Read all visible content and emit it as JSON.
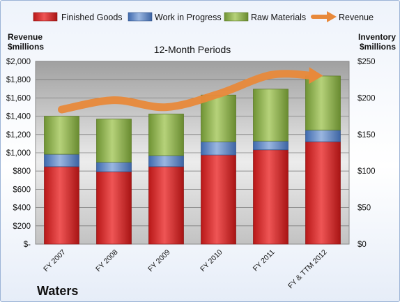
{
  "chart_data": {
    "type": "bar",
    "title": "12-Month Periods",
    "company": "Waters",
    "left_axis": {
      "label_line1": "Revenue",
      "label_line2": "$millions",
      "range": [
        0,
        2000
      ],
      "step": 200,
      "ticks": [
        "$-",
        "$200",
        "$400",
        "$600",
        "$800",
        "$1,000",
        "$1,200",
        "$1,400",
        "$1,600",
        "$1,800",
        "$2,000"
      ]
    },
    "right_axis": {
      "label_line1": "Inventory",
      "label_line2": "$millions",
      "range": [
        0,
        250
      ],
      "step": 50,
      "ticks": [
        "$0",
        "$50",
        "$100",
        "$150",
        "$200",
        "$250"
      ]
    },
    "categories": [
      "FY 2007",
      "FY 2008",
      "FY 2009",
      "FY 2010",
      "FY 2011",
      "FY & TTM 2012"
    ],
    "series": [
      {
        "name": "Finished Goods",
        "axis": "right",
        "kind": "stacked-bar",
        "color": "#d62a2a",
        "values": [
          106,
          99,
          106,
          122,
          129,
          140
        ]
      },
      {
        "name": "Work in Progress",
        "axis": "right",
        "kind": "stacked-bar",
        "color": "#5b84c4",
        "values": [
          17,
          13,
          15,
          18,
          12,
          16
        ]
      },
      {
        "name": "Raw Materials",
        "axis": "right",
        "kind": "stacked-bar",
        "color": "#8fb24a",
        "values": [
          52,
          59,
          57,
          64,
          71,
          74
        ]
      },
      {
        "name": "Revenue",
        "axis": "left",
        "kind": "line",
        "color": "#e8893a",
        "values": [
          1473,
          1575,
          1499,
          1643,
          1851,
          1843
        ]
      }
    ],
    "legend_position": "top",
    "grid": true
  }
}
